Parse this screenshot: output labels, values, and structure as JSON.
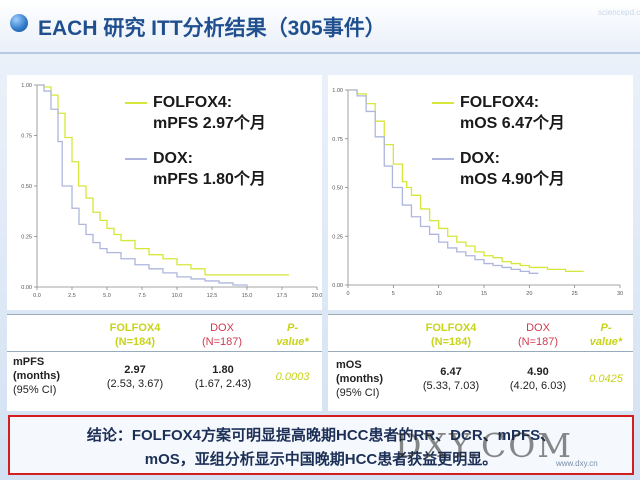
{
  "slide": {
    "title": "EACH 研究 ITT分析结果（305事件）",
    "corner_text": "sciencepd.com"
  },
  "left_legend": {
    "folfox_line1": "FOLFOX4:",
    "folfox_line2": "mPFS 2.97个月",
    "dox_line1": "DOX:",
    "dox_line2": "mPFS 1.80个月"
  },
  "right_legend": {
    "folfox_line1": "FOLFOX4:",
    "folfox_line2": "mOS 6.47个月",
    "dox_line1": "DOX:",
    "dox_line2": "mOS 4.90个月"
  },
  "left_table": {
    "h1a": "FOLFOX4",
    "h1b": "(N=184)",
    "h2a": "DOX",
    "h2b": "(N=187)",
    "h3a": "P-",
    "h3b": "value*",
    "r1": "mPFS",
    "r2": "(months)",
    "r3": "(95% CI)",
    "v1a": "2.97",
    "v1b": "(2.53, 3.67)",
    "v2a": "1.80",
    "v2b": "(1.67, 2.43)",
    "p": "0.0003"
  },
  "right_table": {
    "h1a": "FOLFOX4",
    "h1b": "(N=184)",
    "h2a": "DOX",
    "h2b": "(N=187)",
    "h3a": "P-",
    "h3b": "value*",
    "r1": "mOS",
    "r2": "(months)",
    "r3": "(95% CI)",
    "v1a": "6.47",
    "v1b": "(5.33, 7.03)",
    "v2a": "4.90",
    "v2b": "(4.20, 6.03)",
    "p": "0.0425"
  },
  "conclusion": {
    "line1": "结论：FOLFOX4方案可明显提高晚期HCC患者的RR、DCR、mPFS、",
    "line2": "mOS，亚组分析显示中国晚期HCC患者获益更明显。"
  },
  "watermark": {
    "text": "DXY.COM",
    "site": "www.dxy.cn"
  },
  "colors": {
    "folfox": "#d6e63a",
    "dox": "#aeb6dd",
    "highlight_yellow": "#c8d31a",
    "highlight_red": "#cf3b50"
  },
  "chart_data": [
    {
      "type": "line",
      "title": "",
      "xlabel": "",
      "ylabel": "",
      "xlim": [
        0,
        20
      ],
      "ylim": [
        0,
        1
      ],
      "xticks": [
        "0.0",
        "2.5",
        "5.0",
        "7.5",
        "10.0",
        "12.5",
        "15.0",
        "17.5",
        "20.0"
      ],
      "yticks": [
        "0.00",
        "0.25",
        "0.50",
        "0.75",
        "1.00"
      ],
      "series": [
        {
          "name": "FOLFOX4",
          "x": [
            0,
            0.5,
            1,
            1.5,
            2,
            2.5,
            2.97,
            3.5,
            4,
            4.5,
            5,
            5.5,
            6,
            7,
            8,
            9,
            10,
            11,
            12,
            13,
            14,
            15,
            16,
            17,
            18
          ],
          "y": [
            1,
            0.99,
            0.95,
            0.86,
            0.74,
            0.62,
            0.5,
            0.44,
            0.37,
            0.33,
            0.29,
            0.26,
            0.23,
            0.19,
            0.16,
            0.14,
            0.11,
            0.09,
            0.06,
            0.06,
            0.06,
            0.06,
            0.06,
            0.06,
            0.06
          ]
        },
        {
          "name": "DOX",
          "x": [
            0,
            0.5,
            1,
            1.5,
            1.8,
            2.5,
            3,
            3.5,
            4,
            4.5,
            5,
            6,
            7,
            8,
            9,
            10,
            11,
            12,
            13,
            14,
            15
          ],
          "y": [
            1,
            0.97,
            0.88,
            0.72,
            0.5,
            0.39,
            0.31,
            0.26,
            0.22,
            0.19,
            0.17,
            0.14,
            0.11,
            0.09,
            0.07,
            0.05,
            0.04,
            0.03,
            0.02,
            0.01,
            0.0
          ]
        }
      ]
    },
    {
      "type": "line",
      "title": "",
      "xlabel": "",
      "ylabel": "",
      "xlim": [
        0,
        30
      ],
      "ylim": [
        0,
        1
      ],
      "xticks": [
        "0",
        "5",
        "10",
        "15",
        "20",
        "25",
        "30"
      ],
      "yticks": [
        "0.00",
        "0.25",
        "0.50",
        "0.75",
        "1.00"
      ],
      "series": [
        {
          "name": "FOLFOX4",
          "x": [
            0,
            1,
            2,
            3,
            4,
            5,
            6,
            6.47,
            7,
            8,
            9,
            10,
            11,
            12,
            13,
            14,
            15,
            16,
            17,
            18,
            19,
            20,
            22,
            24,
            26
          ],
          "y": [
            1,
            0.98,
            0.93,
            0.84,
            0.72,
            0.62,
            0.53,
            0.5,
            0.46,
            0.39,
            0.33,
            0.29,
            0.25,
            0.22,
            0.2,
            0.17,
            0.15,
            0.14,
            0.12,
            0.11,
            0.1,
            0.09,
            0.08,
            0.07,
            0.07
          ]
        },
        {
          "name": "DOX",
          "x": [
            0,
            1,
            2,
            3,
            4,
            4.9,
            6,
            7,
            8,
            9,
            10,
            11,
            12,
            13,
            14,
            15,
            16,
            17,
            18,
            19,
            20,
            21
          ],
          "y": [
            1,
            0.97,
            0.89,
            0.76,
            0.61,
            0.5,
            0.41,
            0.35,
            0.3,
            0.26,
            0.22,
            0.19,
            0.17,
            0.15,
            0.13,
            0.11,
            0.1,
            0.09,
            0.08,
            0.07,
            0.06,
            0.06
          ]
        }
      ]
    }
  ]
}
